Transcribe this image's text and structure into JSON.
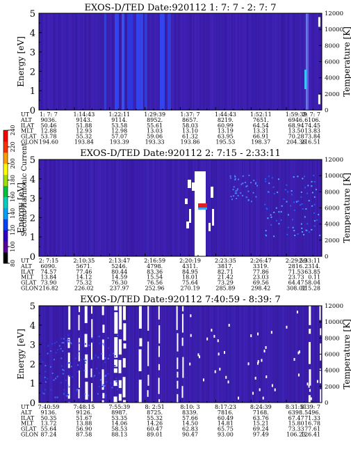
{
  "chart_data": [
    {
      "type": "heatmap",
      "title": "EXOS-D/TED   Date:920112  1: 7: 7 - 2: 7: 7",
      "ylabel": "Energy [eV]",
      "ylabel_right": "Temperature [K]",
      "ylim": [
        0,
        5
      ],
      "ylim_right": [
        0,
        12000
      ],
      "y_ticks": [
        "0",
        "1",
        "2",
        "3",
        "4",
        "5"
      ],
      "y_ticks_right": [
        "0",
        "2000",
        "4000",
        "6000",
        "8000",
        "10000",
        "12000"
      ],
      "row_labels": [
        "UT",
        "ALT",
        "ILAT",
        "MLT",
        "GLAT",
        "GLON"
      ],
      "columns": [
        [
          "1: 7: 7",
          "9036.",
          "50.46",
          "12.88",
          "53.78",
          "194.60"
        ],
        [
          "1:14:43",
          "9143.",
          "51.88",
          "12.93",
          "55.32",
          "193.84"
        ],
        [
          "1:22:11",
          "9114.",
          "53.58",
          "12.98",
          "57.07",
          "193.39"
        ],
        [
          "1:29:39",
          "8952.",
          "55.61",
          "13.03",
          "59.06",
          "193.33"
        ],
        [
          "1:37: 7",
          "8657.",
          "58.03",
          "13.10",
          "61.32",
          "193.86"
        ],
        [
          "1:44:43",
          "8219.",
          "60.99",
          "13.19",
          "63.95",
          "195.53"
        ],
        [
          "1:52:11",
          "7651.",
          "64.54",
          "13.31",
          "66.91",
          "198.37"
        ],
        [
          "1:59:39",
          "6946.",
          "68.94",
          "13.50",
          "70.28",
          "204.36"
        ],
        [
          "2: 7: 7",
          "6106.",
          "74.45",
          "13.83",
          "73.84",
          "216.51"
        ]
      ],
      "bright_features": [
        {
          "x_col": 7.9,
          "energy": [
            4.3,
            4.8
          ]
        },
        {
          "x_col": 7.9,
          "energy": [
            0.3,
            0.8
          ]
        }
      ]
    },
    {
      "type": "heatmap",
      "title": "EXOS-D/TED   Date:920112  2: 7:15 - 2:33:11",
      "ylabel": "Energy [eV]",
      "ylabel_right": "Temperature [K]",
      "ylim": [
        0,
        5
      ],
      "ylim_right": [
        0,
        12000
      ],
      "y_ticks": [
        "0",
        "1",
        "2",
        "3",
        "4",
        "5"
      ],
      "y_ticks_right": [
        "0",
        "2000",
        "4000",
        "6000",
        "8000",
        "10000",
        "12000"
      ],
      "row_labels": [
        "UT",
        "ALT",
        "ILAT",
        "MLT",
        "GLAT",
        "GLON"
      ],
      "columns": [
        [
          "2: 7:15",
          "6090.",
          "74.57",
          "13.84",
          "73.90",
          "216.82"
        ],
        [
          "2:10:35",
          "5671.",
          "77.46",
          "14.12",
          "75.32",
          "226.02"
        ],
        [
          "2:13:47",
          "5246.",
          "80.44",
          "14.59",
          "76.30",
          "237.97"
        ],
        [
          "2:16:59",
          "4798.",
          "83.36",
          "15.54",
          "76.56",
          "252.96"
        ],
        [
          "2:20:19",
          "4311.",
          "84.95",
          "18.01",
          "75.64",
          "270.19"
        ],
        [
          "2:23:35",
          "3817.",
          "82.71",
          "21.42",
          "73.29",
          "285.89"
        ],
        [
          "2:26:47",
          "3319.",
          "77.86",
          "23.03",
          "69.56",
          "298.42"
        ],
        [
          "2:29:59",
          "2816.",
          "71.53",
          "23.73",
          "64.47",
          "308.02"
        ],
        [
          "2:33:11",
          "2314.",
          "63.85",
          "0.11",
          "58.04",
          "315.28"
        ]
      ],
      "colorbar": {
        "label": "Second Harmonic Current",
        "ticks": [
          "80",
          "100",
          "120",
          "140",
          "160",
          "180",
          "200",
          "220",
          "240"
        ],
        "colors": [
          "#000000",
          "#5a00a0",
          "#3000c8",
          "#0040ff",
          "#00a0ff",
          "#00d0c0",
          "#00c040",
          "#a0e000",
          "#ffff00",
          "#ffa000",
          "#ff3000",
          "#ff0000"
        ]
      }
    },
    {
      "type": "heatmap",
      "title": "EXOS-D/TED   Date:920112  7:40:59 - 8:39: 7",
      "ylabel": "Energy [eV]",
      "ylabel_right": "Temperature [K]",
      "ylim": [
        0,
        5
      ],
      "ylim_right": [
        0,
        12000
      ],
      "y_ticks": [
        "0",
        "1",
        "2",
        "3",
        "4",
        "5"
      ],
      "y_ticks_right": [
        "0",
        "2000",
        "4000",
        "6000",
        "8000",
        "10000",
        "12000"
      ],
      "row_labels": [
        "UT",
        "ALT",
        "ILAT",
        "MLT",
        "GLAT",
        "GLON"
      ],
      "columns": [
        [
          "7:40:59",
          "9136.",
          "50.35",
          "13.72",
          "55.64",
          "87.24"
        ],
        [
          "7:48:15",
          "9126.",
          "51.67",
          "13.88",
          "56.90",
          "87.58"
        ],
        [
          "7:55:39",
          "8987.",
          "53.35",
          "14.06",
          "58.53",
          "88.13"
        ],
        [
          "8: 2:51",
          "8725.",
          "55.32",
          "14.26",
          "60.47",
          "89.01"
        ],
        [
          "8:10: 3",
          "8339.",
          "57.66",
          "14.50",
          "62.83",
          "90.47"
        ],
        [
          "8:17:23",
          "7816.",
          "60.49",
          "14.81",
          "65.75",
          "93.00"
        ],
        [
          "8:24:39",
          "7168.",
          "63.76",
          "15.21",
          "69.24",
          "97.49"
        ],
        [
          "8:31:51",
          "6398.",
          "67.47",
          "15.80",
          "73.33",
          "106.23"
        ],
        [
          "8:39: 7",
          "5496.",
          "71.33",
          "16.78",
          "77.61",
          "126.41"
        ]
      ]
    }
  ]
}
